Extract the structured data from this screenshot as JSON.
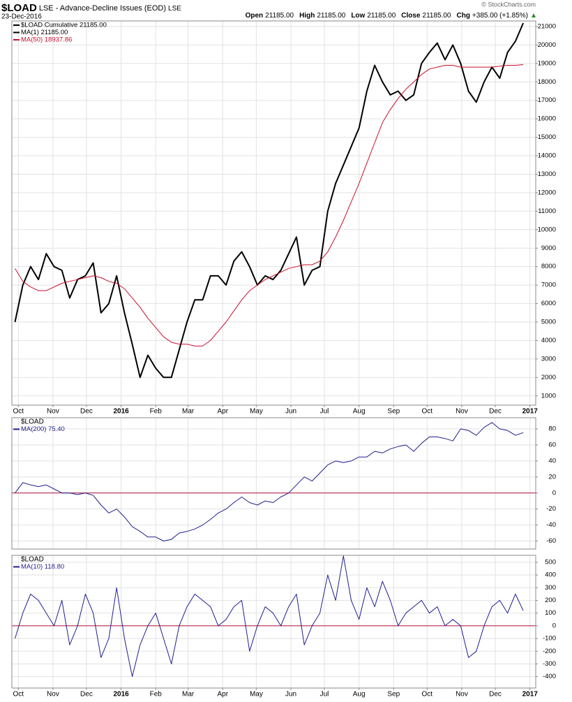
{
  "header": {
    "symbol": "$LOAD",
    "description": "LSE - Advance-Decline Issues (EOD)",
    "exchange": "LSE",
    "date": "23-Dec-2016",
    "quote": [
      {
        "label": "Open",
        "value": "21185.00"
      },
      {
        "label": "High",
        "value": "21185.00"
      },
      {
        "label": "Low",
        "value": "21185.00"
      },
      {
        "label": "Close",
        "value": "21185.00"
      },
      {
        "label": "Chg",
        "value": "+385.00 (+1.85%)"
      }
    ],
    "credit": "© StockCharts.com"
  },
  "chart_data": [
    {
      "type": "line",
      "xlim": [
        -0.4,
        66.6
      ],
      "ylim": [
        500,
        21300
      ],
      "yticks": [
        1000,
        2000,
        3000,
        4000,
        5000,
        6000,
        7000,
        8000,
        9000,
        10000,
        11000,
        12000,
        13000,
        14000,
        15000,
        16000,
        17000,
        18000,
        19000,
        20000,
        21000
      ],
      "xticks": [
        {
          "value": 0.43,
          "label": "Oct"
        },
        {
          "value": 4.86,
          "label": "Nov"
        },
        {
          "value": 9.14,
          "label": "Dec"
        },
        {
          "value": 13.57,
          "label": "2016"
        },
        {
          "value": 18,
          "label": "Feb"
        },
        {
          "value": 22.14,
          "label": "Mar"
        },
        {
          "value": 26.57,
          "label": "Apr"
        },
        {
          "value": 30.86,
          "label": "May"
        },
        {
          "value": 35.29,
          "label": "Jun"
        },
        {
          "value": 39.57,
          "label": "Jul"
        },
        {
          "value": 44,
          "label": "Aug"
        },
        {
          "value": 48.43,
          "label": "Sep"
        },
        {
          "value": 52.71,
          "label": "Oct"
        },
        {
          "value": 57.14,
          "label": "Nov"
        },
        {
          "value": 61.43,
          "label": "Dec"
        },
        {
          "value": 65.86,
          "label": "2017"
        }
      ],
      "grid": true,
      "series": [
        {
          "name": "$LOAD Cumulative 21185.00",
          "color": "#000000",
          "width": 2,
          "values": [
            5000,
            7000,
            8000,
            7300,
            8700,
            8000,
            7800,
            6300,
            7300,
            7500,
            8200,
            5500,
            6000,
            7500,
            5500,
            3800,
            2000,
            3200,
            2500,
            2000,
            2000,
            3500,
            5000,
            6200,
            6200,
            7500,
            7500,
            7000,
            8300,
            8800,
            8000,
            7000,
            7500,
            7300,
            7800,
            8700,
            9600,
            7000,
            7800,
            8000,
            11000,
            12500,
            13500,
            14500,
            15500,
            17500,
            18900,
            18000,
            17300,
            17500,
            17000,
            17300,
            19000,
            19600,
            20100,
            19200,
            20000,
            19000,
            17500,
            16900,
            18000,
            18800,
            18200,
            19600,
            20200,
            21185
          ]
        },
        {
          "name": "MA(1) 21185.00",
          "color": "#000000",
          "width": 1,
          "values": [
            5000,
            7000,
            8000,
            7300,
            8700,
            8000,
            7800,
            6300,
            7300,
            7500,
            8200,
            5500,
            6000,
            7500,
            5500,
            3800,
            2000,
            3200,
            2500,
            2000,
            2000,
            3500,
            5000,
            6200,
            6200,
            7500,
            7500,
            7000,
            8300,
            8800,
            8000,
            7000,
            7500,
            7300,
            7800,
            8700,
            9600,
            7000,
            7800,
            8000,
            11000,
            12500,
            13500,
            14500,
            15500,
            17500,
            18900,
            18000,
            17300,
            17500,
            17000,
            17300,
            19000,
            19600,
            20100,
            19200,
            20000,
            19000,
            17500,
            16900,
            18000,
            18800,
            18200,
            19600,
            20200,
            21185
          ]
        },
        {
          "name": "MA(50) 18937.86",
          "color": "#c8102e",
          "width": 1,
          "values": [
            7900,
            7200,
            6900,
            6700,
            6700,
            6900,
            7100,
            7200,
            7300,
            7400,
            7500,
            7400,
            7200,
            7100,
            6800,
            6300,
            5800,
            5200,
            4700,
            4200,
            3900,
            3800,
            3800,
            3700,
            3700,
            4000,
            4500,
            5000,
            5600,
            6200,
            6700,
            7000,
            7300,
            7500,
            7700,
            7900,
            8000,
            8100,
            8100,
            8300,
            8800,
            9600,
            10500,
            11500,
            12500,
            13600,
            14700,
            15800,
            16500,
            17100,
            17600,
            18000,
            18400,
            18700,
            18800,
            18900,
            18900,
            18800,
            18800,
            18800,
            18800,
            18800,
            18850,
            18900,
            18900,
            18938
          ]
        }
      ]
    },
    {
      "type": "line",
      "label": "$LOAD",
      "xlim": [
        -0.4,
        66.6
      ],
      "ylim": [
        -70,
        94
      ],
      "yticks": [
        -60,
        -40,
        -20,
        0,
        20,
        40,
        60,
        80
      ],
      "grid": true,
      "reference_line": {
        "value": 0,
        "color": "#b0103a"
      },
      "series": [
        {
          "name": "MA(200) 75.40",
          "color": "#1f1f8f",
          "width": 1,
          "values": [
            0,
            13,
            10,
            8,
            10,
            5,
            0,
            0,
            -2,
            0,
            -3,
            -15,
            -25,
            -20,
            -30,
            -42,
            -48,
            -55,
            -55,
            -60,
            -58,
            -50,
            -48,
            -45,
            -40,
            -33,
            -25,
            -20,
            -12,
            -5,
            -12,
            -15,
            -10,
            -12,
            -5,
            0,
            10,
            20,
            15,
            25,
            35,
            40,
            38,
            40,
            45,
            45,
            52,
            50,
            55,
            58,
            60,
            52,
            62,
            70,
            70,
            68,
            65,
            80,
            78,
            72,
            82,
            88,
            80,
            78,
            72,
            75.4
          ]
        }
      ]
    },
    {
      "type": "line",
      "label": "$LOAD",
      "xlim": [
        -0.4,
        66.6
      ],
      "ylim": [
        -490,
        555
      ],
      "yticks": [
        -400,
        -300,
        -200,
        -100,
        0,
        100,
        200,
        300,
        400,
        500
      ],
      "xticks": [
        {
          "value": 0.43,
          "label": "Oct"
        },
        {
          "value": 4.86,
          "label": "Nov"
        },
        {
          "value": 9.14,
          "label": "Dec"
        },
        {
          "value": 13.57,
          "label": "2016"
        },
        {
          "value": 18,
          "label": "Feb"
        },
        {
          "value": 22.14,
          "label": "Mar"
        },
        {
          "value": 26.57,
          "label": "Apr"
        },
        {
          "value": 30.86,
          "label": "May"
        },
        {
          "value": 35.29,
          "label": "Jun"
        },
        {
          "value": 39.57,
          "label": "Jul"
        },
        {
          "value": 44,
          "label": "Aug"
        },
        {
          "value": 48.43,
          "label": "Sep"
        },
        {
          "value": 52.71,
          "label": "Oct"
        },
        {
          "value": 57.14,
          "label": "Nov"
        },
        {
          "value": 61.43,
          "label": "Dec"
        },
        {
          "value": 65.86,
          "label": "2017"
        }
      ],
      "grid": true,
      "reference_line": {
        "value": 0,
        "color": "#b0103a"
      },
      "series": [
        {
          "name": "MA(10) 118.80",
          "color": "#1f1f8f",
          "width": 1,
          "values": [
            -100,
            100,
            250,
            200,
            100,
            0,
            200,
            -150,
            0,
            250,
            100,
            -250,
            -100,
            300,
            -100,
            -400,
            -150,
            0,
            100,
            -100,
            -300,
            0,
            150,
            250,
            200,
            150,
            0,
            50,
            150,
            200,
            -200,
            0,
            150,
            100,
            0,
            150,
            250,
            -150,
            0,
            100,
            400,
            200,
            550,
            200,
            50,
            300,
            150,
            350,
            200,
            0,
            100,
            150,
            200,
            100,
            150,
            0,
            50,
            0,
            -250,
            -200,
            0,
            150,
            200,
            100,
            250,
            118.8
          ]
        }
      ]
    }
  ]
}
